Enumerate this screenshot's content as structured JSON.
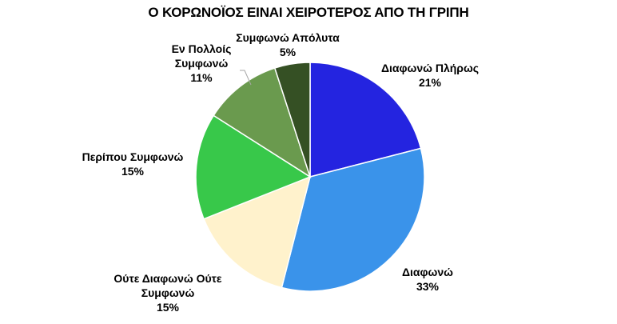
{
  "chart_data": {
    "type": "pie",
    "title": "Ο ΚΟΡΩΝΟΪΟΣ ΕΙΝΑΙ ΧΕΙΡΟΤΕΡΟΣ ΑΠΟ ΤΗ ΓΡΙΠΗ",
    "start_angle_deg": 0,
    "direction": "clockwise",
    "slices": [
      {
        "label_lines": [
          "Διαφωνώ Πλήρως"
        ],
        "value": 21,
        "value_label": "21%",
        "color": "#2424E0"
      },
      {
        "label_lines": [
          "Διαφωνώ"
        ],
        "value": 33,
        "value_label": "33%",
        "color": "#3A93EA"
      },
      {
        "label_lines": [
          "Ούτε Διαφωνώ Ούτε",
          "Συμφωνώ"
        ],
        "value": 15,
        "value_label": "15%",
        "color": "#FFF2CC"
      },
      {
        "label_lines": [
          "Περίπου Συμφωνώ"
        ],
        "value": 15,
        "value_label": "15%",
        "color": "#38C84A"
      },
      {
        "label_lines": [
          "Εν Πολλοίς",
          "Συμφωνώ"
        ],
        "value": 11,
        "value_label": "11%",
        "color": "#6A9A4E"
      },
      {
        "label_lines": [
          "Συμφωνώ Απόλυτα"
        ],
        "value": 5,
        "value_label": "5%",
        "color": "#355024"
      }
    ]
  }
}
